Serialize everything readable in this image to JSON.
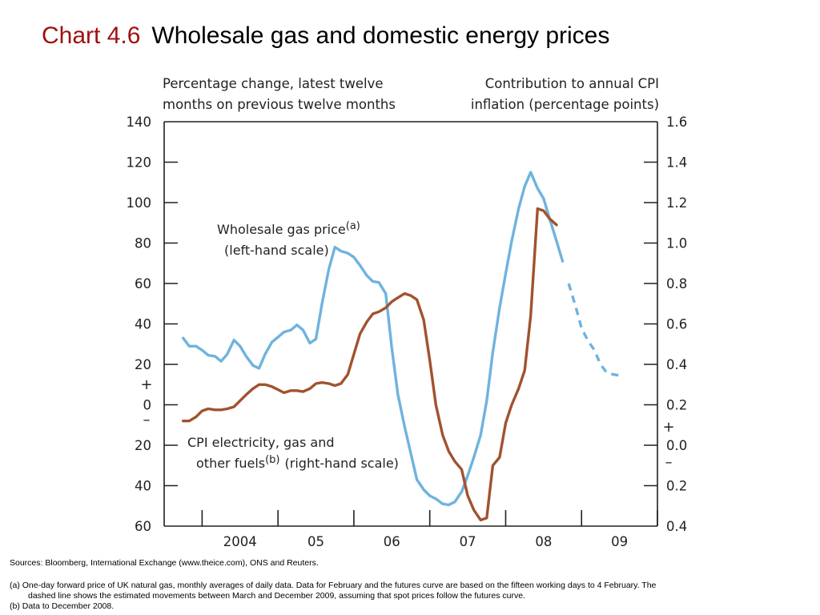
{
  "title": {
    "number": "Chart 4.6",
    "text": "Wholesale gas and domestic energy prices"
  },
  "notes": {
    "sources": "Sources:  Bloomberg, International Exchange (www.theice.com), ONS and Reuters.",
    "a_line1": "(a)  One-day forward price of UK natural gas, monthly averages of daily data.  Data for February and the futures curve are based on the fifteen working days to 4 February.  The",
    "a_line2": "dashed line shows the estimated movements between March and December 2009, assuming that spot prices follow the futures curve.",
    "b": "(b)  Data to December 2008."
  },
  "chart_data": {
    "type": "line",
    "left_axis": {
      "label_line1": "Percentage change, latest twelve",
      "label_line2": "months on previous twelve months",
      "ylim": [
        -60,
        140
      ],
      "ticks": [
        140,
        120,
        100,
        80,
        60,
        40,
        20,
        0,
        -20,
        -40,
        -60
      ],
      "tick_labels": [
        "140",
        "120",
        "100",
        "80",
        "60",
        "40",
        "20",
        "0",
        "20",
        "40",
        "60"
      ],
      "plus": "+",
      "minus": "–"
    },
    "right_axis": {
      "label_line1": "Contribution to annual CPI",
      "label_line2": "inflation (percentage points)",
      "ylim": [
        -0.4,
        1.6
      ],
      "ticks": [
        1.6,
        1.4,
        1.2,
        1.0,
        0.8,
        0.6,
        0.4,
        0.2,
        0.0,
        -0.2,
        -0.4
      ],
      "tick_labels": [
        "1.6",
        "1.4",
        "1.2",
        "1.0",
        "0.8",
        "0.6",
        "0.4",
        "0.2",
        "0.0",
        "0.2",
        "0.4"
      ],
      "plus": "+",
      "minus": "–"
    },
    "x_axis": {
      "xlim": [
        2003.5,
        2010.0
      ],
      "ticks": [
        2004,
        2005,
        2006,
        2007,
        2008,
        2009,
        2010
      ],
      "tick_labels": [
        "2004",
        "05",
        "06",
        "07",
        "08",
        "09"
      ]
    },
    "series": [
      {
        "name_line1": "Wholesale gas price",
        "name_sup": "(a)",
        "name_line2": "(left-hand scale)",
        "axis": "left",
        "color": "#6fb3de",
        "solid": [
          [
            2003.75,
            33
          ],
          [
            2003.83,
            29
          ],
          [
            2003.92,
            29
          ],
          [
            2004.0,
            27
          ],
          [
            2004.08,
            24.5
          ],
          [
            2004.17,
            24
          ],
          [
            2004.25,
            21.5
          ],
          [
            2004.33,
            25
          ],
          [
            2004.42,
            32
          ],
          [
            2004.5,
            29
          ],
          [
            2004.58,
            24
          ],
          [
            2004.67,
            19.5
          ],
          [
            2004.75,
            18
          ],
          [
            2004.83,
            25
          ],
          [
            2004.92,
            31
          ],
          [
            2005.0,
            33.5
          ],
          [
            2005.08,
            36
          ],
          [
            2005.17,
            37
          ],
          [
            2005.25,
            39.5
          ],
          [
            2005.33,
            37
          ],
          [
            2005.42,
            30.5
          ],
          [
            2005.5,
            32.5
          ],
          [
            2005.58,
            50
          ],
          [
            2005.67,
            67
          ],
          [
            2005.75,
            78
          ],
          [
            2005.83,
            76
          ],
          [
            2005.92,
            75
          ],
          [
            2006.0,
            73
          ],
          [
            2006.08,
            69
          ],
          [
            2006.17,
            64
          ],
          [
            2006.25,
            61
          ],
          [
            2006.33,
            60.5
          ],
          [
            2006.42,
            55
          ],
          [
            2006.5,
            28
          ],
          [
            2006.58,
            5
          ],
          [
            2006.67,
            -11
          ],
          [
            2006.75,
            -24
          ],
          [
            2006.83,
            -37
          ],
          [
            2006.92,
            -42
          ],
          [
            2007.0,
            -45
          ],
          [
            2007.08,
            -46.5
          ],
          [
            2007.17,
            -49
          ],
          [
            2007.25,
            -49.5
          ],
          [
            2007.33,
            -48
          ],
          [
            2007.42,
            -43
          ],
          [
            2007.5,
            -35
          ],
          [
            2007.58,
            -26
          ],
          [
            2007.67,
            -15
          ],
          [
            2007.75,
            2
          ],
          [
            2007.83,
            26
          ],
          [
            2007.92,
            48
          ],
          [
            2008.0,
            65
          ],
          [
            2008.08,
            81
          ],
          [
            2008.17,
            97
          ],
          [
            2008.25,
            108
          ],
          [
            2008.33,
            115
          ],
          [
            2008.42,
            107
          ],
          [
            2008.5,
            102
          ],
          [
            2008.58,
            92
          ],
          [
            2008.67,
            81
          ],
          [
            2008.75,
            71
          ]
        ],
        "dashed": [
          [
            2008.83,
            60
          ],
          [
            2008.92,
            49
          ],
          [
            2009.0,
            38
          ],
          [
            2009.08,
            32
          ],
          [
            2009.17,
            27
          ],
          [
            2009.25,
            20
          ],
          [
            2009.33,
            16
          ],
          [
            2009.42,
            15
          ],
          [
            2009.5,
            14.5
          ]
        ]
      },
      {
        "name_line1": "CPI electricity, gas and",
        "name_line2a": "other fuels",
        "name_sup": "(b)",
        "name_line2b": "(right-hand scale)",
        "axis": "right",
        "color": "#a1522f",
        "solid": [
          [
            2003.75,
            0.12
          ],
          [
            2003.83,
            0.12
          ],
          [
            2003.92,
            0.14
          ],
          [
            2004.0,
            0.17
          ],
          [
            2004.08,
            0.18
          ],
          [
            2004.17,
            0.175
          ],
          [
            2004.25,
            0.175
          ],
          [
            2004.33,
            0.18
          ],
          [
            2004.42,
            0.19
          ],
          [
            2004.5,
            0.22
          ],
          [
            2004.58,
            0.25
          ],
          [
            2004.67,
            0.28
          ],
          [
            2004.75,
            0.3
          ],
          [
            2004.83,
            0.3
          ],
          [
            2004.92,
            0.29
          ],
          [
            2005.0,
            0.275
          ],
          [
            2005.08,
            0.26
          ],
          [
            2005.17,
            0.27
          ],
          [
            2005.25,
            0.27
          ],
          [
            2005.33,
            0.265
          ],
          [
            2005.42,
            0.28
          ],
          [
            2005.5,
            0.305
          ],
          [
            2005.58,
            0.31
          ],
          [
            2005.67,
            0.305
          ],
          [
            2005.75,
            0.295
          ],
          [
            2005.83,
            0.305
          ],
          [
            2005.92,
            0.35
          ],
          [
            2006.0,
            0.45
          ],
          [
            2006.08,
            0.55
          ],
          [
            2006.17,
            0.61
          ],
          [
            2006.25,
            0.65
          ],
          [
            2006.33,
            0.66
          ],
          [
            2006.42,
            0.68
          ],
          [
            2006.5,
            0.71
          ],
          [
            2006.58,
            0.73
          ],
          [
            2006.67,
            0.75
          ],
          [
            2006.75,
            0.74
          ],
          [
            2006.83,
            0.72
          ],
          [
            2006.92,
            0.62
          ],
          [
            2007.0,
            0.42
          ],
          [
            2007.08,
            0.2
          ],
          [
            2007.17,
            0.05
          ],
          [
            2007.25,
            -0.03
          ],
          [
            2007.33,
            -0.08
          ],
          [
            2007.42,
            -0.12
          ],
          [
            2007.5,
            -0.25
          ],
          [
            2007.58,
            -0.32
          ],
          [
            2007.67,
            -0.37
          ],
          [
            2007.75,
            -0.36
          ],
          [
            2007.83,
            -0.1
          ],
          [
            2007.92,
            -0.06
          ],
          [
            2008.0,
            0.11
          ],
          [
            2008.08,
            0.2
          ],
          [
            2008.17,
            0.28
          ],
          [
            2008.25,
            0.37
          ],
          [
            2008.33,
            0.64
          ],
          [
            2008.42,
            1.17
          ],
          [
            2008.5,
            1.16
          ],
          [
            2008.58,
            1.12
          ],
          [
            2008.67,
            1.09
          ]
        ]
      }
    ]
  }
}
